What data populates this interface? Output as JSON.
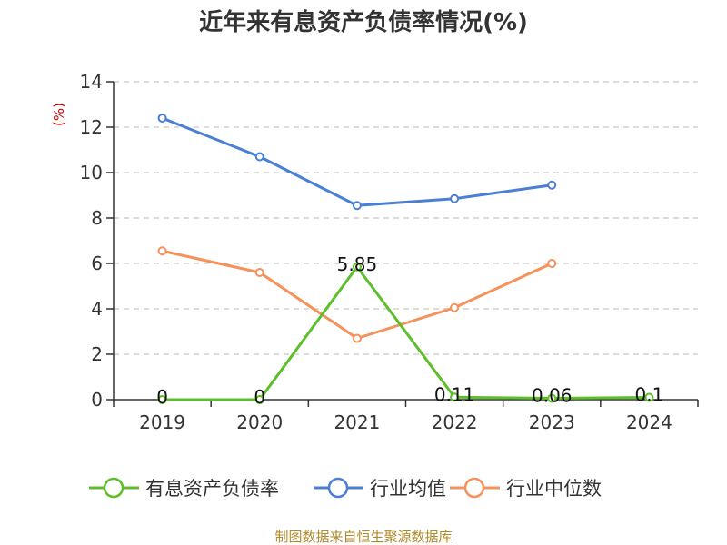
{
  "chart_data": {
    "type": "line",
    "title": "近年来有息资产负债率情况(%)",
    "ylabel": "(%)",
    "categories": [
      "2019",
      "2020",
      "2021",
      "2022",
      "2023",
      "2024"
    ],
    "yticks": [
      "0",
      "2",
      "4",
      "6",
      "8",
      "10",
      "12",
      "14"
    ],
    "ylim": [
      0,
      14
    ],
    "grid": true,
    "legend_position": "bottom",
    "series": [
      {
        "name": "有息资产负债率",
        "color": "#5cbf2a",
        "values": [
          0,
          0,
          5.85,
          0.11,
          0.06,
          0.1
        ],
        "labels": [
          "0",
          "0",
          "5.85",
          "0.11",
          "0.06",
          "0.1"
        ]
      },
      {
        "name": "行业均值",
        "color": "#4a7fd6",
        "values": [
          12.4,
          10.7,
          8.55,
          8.85,
          9.45,
          null
        ]
      },
      {
        "name": "行业中位数",
        "color": "#f5915a",
        "values": [
          6.55,
          5.6,
          2.7,
          4.05,
          6.0,
          null
        ]
      }
    ],
    "source": "制图数据来自恒生聚源数据库"
  }
}
